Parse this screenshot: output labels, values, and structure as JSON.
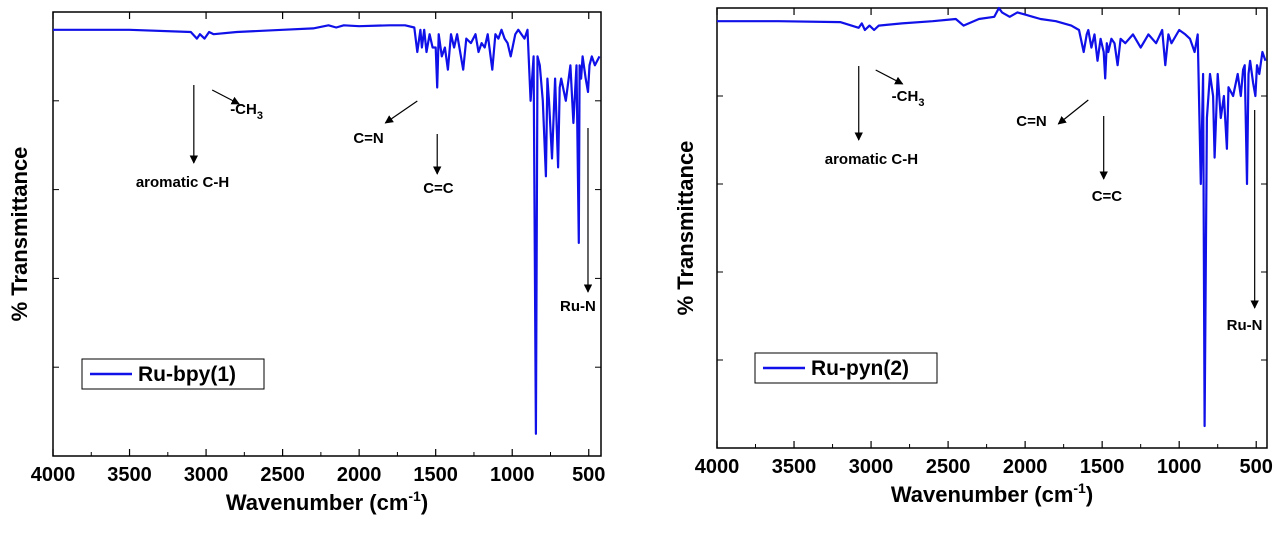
{
  "colors": {
    "series": "#1010e8",
    "axis": "#000000",
    "annotation": "#000000"
  },
  "chart_data": [
    {
      "type": "line",
      "xlabel": "Wavenumber (cm",
      "xlabel_sup": "-1",
      "xlabel_tail": ")",
      "ylabel": "% Transmittance",
      "xlim": [
        4000,
        420
      ],
      "ylim": [
        0,
        100
      ],
      "xticks": [
        4000,
        3500,
        3000,
        2500,
        2000,
        1500,
        1000,
        500
      ],
      "xtick_labels": [
        "4000",
        "3500",
        "3000",
        "2500",
        "2000",
        "1500",
        "1000",
        "500"
      ],
      "legend": "top-left-lower",
      "series": [
        {
          "name": "Ru-bpy(1)",
          "x": [
            4000,
            3500,
            3100,
            3060,
            3040,
            3010,
            2980,
            2950,
            2800,
            2500,
            2300,
            2200,
            2150,
            2100,
            2000,
            1800,
            1700,
            1640,
            1620,
            1600,
            1590,
            1575,
            1560,
            1540,
            1520,
            1500,
            1490,
            1480,
            1460,
            1440,
            1420,
            1400,
            1380,
            1360,
            1320,
            1300,
            1270,
            1240,
            1220,
            1200,
            1180,
            1160,
            1130,
            1110,
            1090,
            1070,
            1050,
            1030,
            1010,
            980,
            960,
            940,
            920,
            900,
            880,
            860,
            845,
            835,
            820,
            800,
            780,
            770,
            760,
            740,
            720,
            700,
            690,
            680,
            650,
            620,
            600,
            580,
            565,
            560,
            550,
            540,
            520,
            505,
            495,
            480,
            460,
            430
          ],
          "y": [
            96,
            96,
            95.5,
            94,
            95,
            94,
            95.5,
            95,
            95.5,
            96,
            96.3,
            97,
            96.5,
            97,
            96.8,
            97,
            97,
            96.5,
            91,
            96,
            92,
            96,
            91,
            95,
            92,
            92,
            83,
            95,
            90,
            92,
            87,
            95,
            92,
            95,
            87,
            94,
            93,
            95,
            91,
            93,
            92,
            95,
            87,
            95,
            94,
            96,
            94,
            93,
            90,
            95,
            96,
            95,
            94,
            96,
            80,
            90,
            5,
            90,
            88,
            80,
            63,
            85,
            80,
            67,
            85,
            65,
            83,
            85,
            80,
            88,
            75,
            88,
            48,
            88,
            85,
            90,
            85,
            82,
            88,
            90,
            88,
            90
          ]
        }
      ],
      "annotations": [
        {
          "label": "aromatic C-H",
          "x": 3080
        },
        {
          "label": "-CH",
          "sub": "3",
          "x": 2960
        },
        {
          "label": "C=N",
          "x": 1620
        },
        {
          "label": "C=C",
          "x": 1490
        },
        {
          "label": "Ru-N",
          "x": 505
        }
      ]
    },
    {
      "type": "line",
      "xlabel": "Wavenumber (cm",
      "xlabel_sup": "-1",
      "xlabel_tail": ")",
      "ylabel": "% Transmittance",
      "xlim": [
        4000,
        430
      ],
      "ylim": [
        0,
        100
      ],
      "xticks": [
        4000,
        3500,
        3000,
        2500,
        2000,
        1500,
        1000,
        500
      ],
      "xtick_labels": [
        "4000",
        "3500",
        "3000",
        "2500",
        "2000",
        "1500",
        "1000",
        "500"
      ],
      "legend": "top-left-lower",
      "series": [
        {
          "name": "Ru-pyn(2)",
          "x": [
            4000,
            3600,
            3200,
            3080,
            3060,
            3040,
            3010,
            2980,
            2950,
            2800,
            2600,
            2450,
            2400,
            2300,
            2200,
            2170,
            2150,
            2100,
            2050,
            2000,
            1950,
            1900,
            1800,
            1700,
            1650,
            1620,
            1600,
            1590,
            1570,
            1550,
            1530,
            1510,
            1490,
            1480,
            1470,
            1460,
            1440,
            1420,
            1400,
            1380,
            1350,
            1300,
            1250,
            1200,
            1150,
            1110,
            1090,
            1070,
            1050,
            1000,
            960,
            930,
            900,
            880,
            860,
            845,
            835,
            820,
            800,
            780,
            770,
            750,
            730,
            710,
            690,
            680,
            650,
            620,
            600,
            585,
            575,
            560,
            550,
            540,
            520,
            505,
            495,
            480,
            460,
            440
          ],
          "y": [
            97,
            97,
            96.8,
            95.5,
            96.5,
            95,
            96,
            95,
            96,
            96.5,
            97,
            97.5,
            96,
            97.5,
            98,
            100,
            99,
            98,
            99,
            98.5,
            98,
            97.5,
            97,
            96,
            95,
            90,
            94,
            95,
            91,
            94,
            88,
            93,
            90,
            84,
            92,
            90,
            93,
            92,
            87,
            93,
            92,
            94,
            91,
            94,
            92,
            95,
            87,
            94,
            92,
            95,
            94,
            93,
            90,
            94,
            60,
            85,
            5,
            75,
            85,
            80,
            66,
            85,
            75,
            80,
            68,
            82,
            80,
            85,
            80,
            86,
            87,
            60,
            85,
            88,
            83,
            80,
            87,
            85,
            90,
            88
          ]
        }
      ],
      "annotations": [
        {
          "label": "aromatic C-H",
          "x": 3080
        },
        {
          "label": "-CH",
          "sub": "3",
          "x": 2970
        },
        {
          "label": "C=N",
          "x": 1590
        },
        {
          "label": "C=C",
          "x": 1490
        },
        {
          "label": "Ru-N",
          "x": 510
        }
      ]
    }
  ]
}
